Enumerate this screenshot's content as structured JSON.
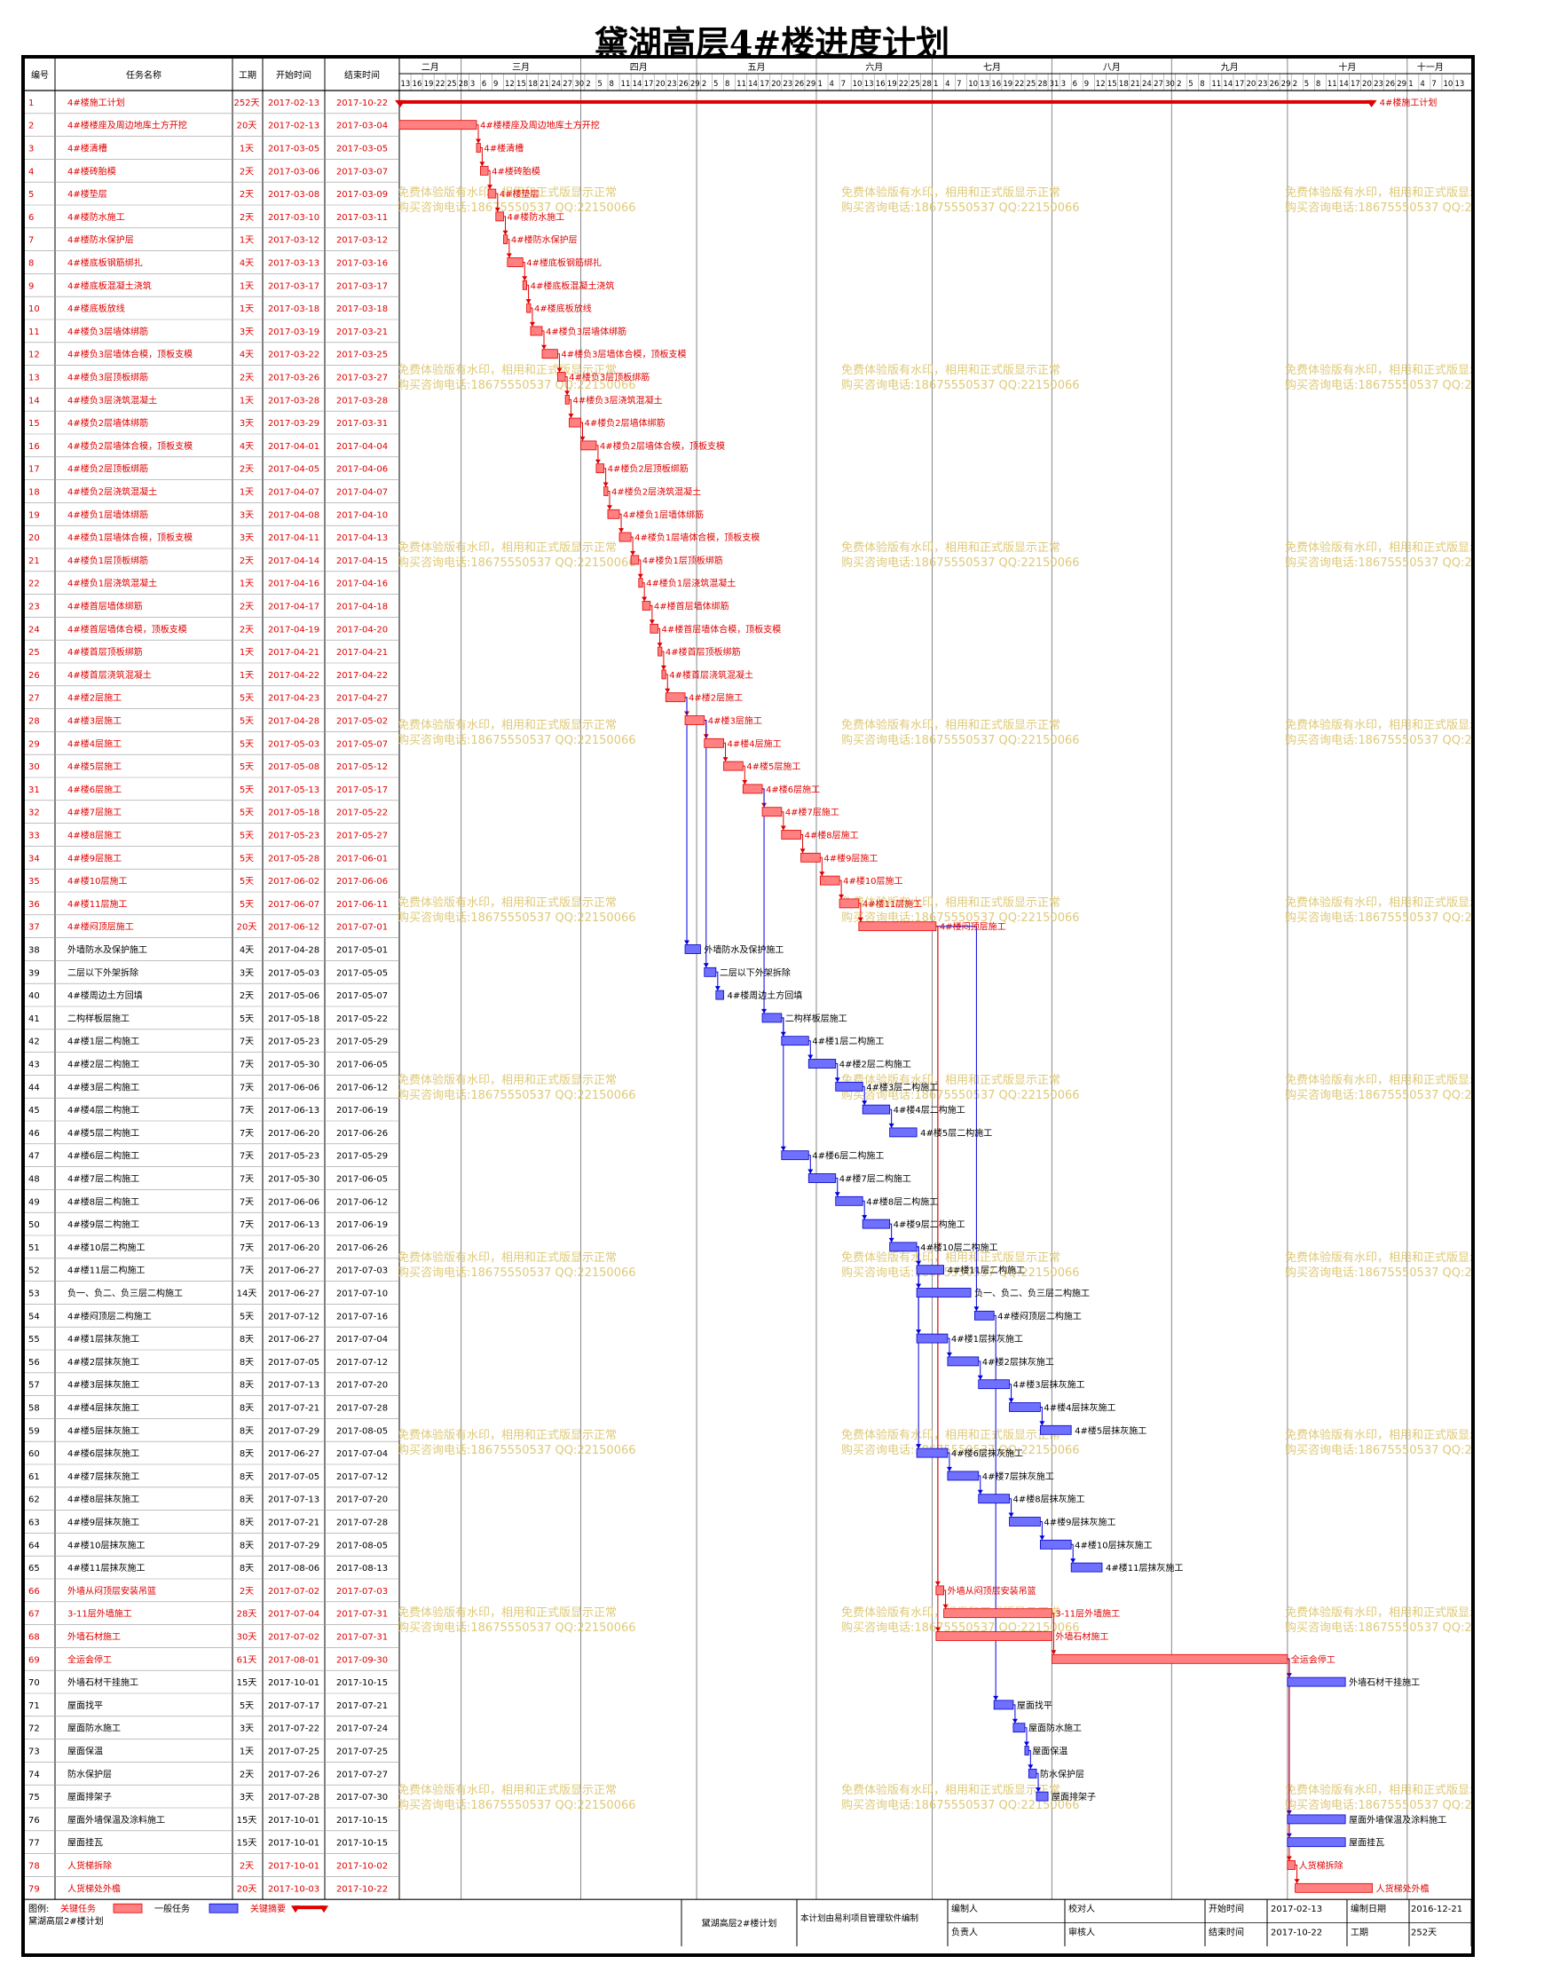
{
  "title": "黛湖高层4#楼进度计划",
  "headers": {
    "id": "编号",
    "name": "任务名称",
    "dur": "工期",
    "start": "开始时间",
    "end": "结束时间"
  },
  "months": [
    "二月",
    "三月",
    "四月",
    "五月",
    "六月",
    "七月",
    "八月",
    "九月",
    "十月",
    "十一月"
  ],
  "day_ticks": [
    {
      "m": "2017-02",
      "d": [
        13,
        16,
        19,
        22,
        25,
        28
      ]
    },
    {
      "m": "2017-03",
      "d": [
        3,
        6,
        9,
        12,
        15,
        18,
        21,
        24,
        27,
        30
      ]
    },
    {
      "m": "2017-04",
      "d": [
        2,
        5,
        8,
        11,
        14,
        17,
        20,
        23,
        26,
        29
      ]
    },
    {
      "m": "2017-05",
      "d": [
        2,
        5,
        8,
        11,
        14,
        17,
        20,
        23,
        26,
        29
      ]
    },
    {
      "m": "2017-06",
      "d": [
        1,
        4,
        7,
        10,
        13,
        16,
        19,
        22,
        25,
        28
      ]
    },
    {
      "m": "2017-07",
      "d": [
        1,
        4,
        7,
        10,
        13,
        16,
        19,
        22,
        25,
        28,
        31
      ]
    },
    {
      "m": "2017-08",
      "d": [
        3,
        6,
        9,
        12,
        15,
        18,
        21,
        24,
        27,
        30
      ]
    },
    {
      "m": "2017-09",
      "d": [
        2,
        5,
        8,
        11,
        14,
        17,
        20,
        23,
        26,
        29
      ]
    },
    {
      "m": "2017-10",
      "d": [
        2,
        5,
        8,
        11,
        14,
        17,
        20,
        23,
        26,
        29
      ]
    },
    {
      "m": "2017-11",
      "d": [
        1,
        4,
        7,
        10,
        13
      ]
    }
  ],
  "colors": {
    "critical": "#e00000",
    "critical_fill": "#ff8080",
    "normal_fill": "#7070ff",
    "normal_edge": "#0000c0",
    "link_blue": "#0000e0",
    "link_red": "#e00000",
    "summary": "#e00000"
  },
  "watermark": [
    "免费体验版有水印，相用和正式版显示正常",
    "购买咨询电话:18675550537 QQ:22150066"
  ],
  "chart_data": {
    "type": "gantt",
    "time_axis": {
      "start": "2017-02-13",
      "end": "2017-11-13"
    },
    "tasks": [
      {
        "id": "1",
        "name": "4#楼施工计划",
        "dur": "252天",
        "start": "2017-02-13",
        "end": "2017-10-22",
        "crit": true,
        "summary": true
      },
      {
        "id": "2",
        "name": "4#楼楼座及周边地库土方开挖",
        "dur": "20天",
        "start": "2017-02-13",
        "end": "2017-03-04",
        "crit": true
      },
      {
        "id": "3",
        "name": "4#楼清槽",
        "dur": "1天",
        "start": "2017-03-05",
        "end": "2017-03-05",
        "crit": true
      },
      {
        "id": "4",
        "name": "4#楼砖胎模",
        "dur": "2天",
        "start": "2017-03-06",
        "end": "2017-03-07",
        "crit": true
      },
      {
        "id": "5",
        "name": "4#楼垫层",
        "dur": "2天",
        "start": "2017-03-08",
        "end": "2017-03-09",
        "crit": true
      },
      {
        "id": "6",
        "name": "4#楼防水施工",
        "dur": "2天",
        "start": "2017-03-10",
        "end": "2017-03-11",
        "crit": true
      },
      {
        "id": "7",
        "name": "4#楼防水保护层",
        "dur": "1天",
        "start": "2017-03-12",
        "end": "2017-03-12",
        "crit": true
      },
      {
        "id": "8",
        "name": "4#楼底板钢筋绑扎",
        "dur": "4天",
        "start": "2017-03-13",
        "end": "2017-03-16",
        "crit": true
      },
      {
        "id": "9",
        "name": "4#楼底板混凝土浇筑",
        "dur": "1天",
        "start": "2017-03-17",
        "end": "2017-03-17",
        "crit": true
      },
      {
        "id": "10",
        "name": "4#楼底板放线",
        "dur": "1天",
        "start": "2017-03-18",
        "end": "2017-03-18",
        "crit": true
      },
      {
        "id": "11",
        "name": "4#楼负3层墙体绑筋",
        "dur": "3天",
        "start": "2017-03-19",
        "end": "2017-03-21",
        "crit": true
      },
      {
        "id": "12",
        "name": "4#楼负3层墙体合模，顶板支模",
        "dur": "4天",
        "start": "2017-03-22",
        "end": "2017-03-25",
        "crit": true
      },
      {
        "id": "13",
        "name": "4#楼负3层顶板绑筋",
        "dur": "2天",
        "start": "2017-03-26",
        "end": "2017-03-27",
        "crit": true
      },
      {
        "id": "14",
        "name": "4#楼负3层浇筑混凝土",
        "dur": "1天",
        "start": "2017-03-28",
        "end": "2017-03-28",
        "crit": true
      },
      {
        "id": "15",
        "name": "4#楼负2层墙体绑筋",
        "dur": "3天",
        "start": "2017-03-29",
        "end": "2017-03-31",
        "crit": true
      },
      {
        "id": "16",
        "name": "4#楼负2层墙体合模，顶板支模",
        "dur": "4天",
        "start": "2017-04-01",
        "end": "2017-04-04",
        "crit": true
      },
      {
        "id": "17",
        "name": "4#楼负2层顶板绑筋",
        "dur": "2天",
        "start": "2017-04-05",
        "end": "2017-04-06",
        "crit": true
      },
      {
        "id": "18",
        "name": "4#楼负2层浇筑混凝土",
        "dur": "1天",
        "start": "2017-04-07",
        "end": "2017-04-07",
        "crit": true
      },
      {
        "id": "19",
        "name": "4#楼负1层墙体绑筋",
        "dur": "3天",
        "start": "2017-04-08",
        "end": "2017-04-10",
        "crit": true
      },
      {
        "id": "20",
        "name": "4#楼负1层墙体合模，顶板支模",
        "dur": "3天",
        "start": "2017-04-11",
        "end": "2017-04-13",
        "crit": true
      },
      {
        "id": "21",
        "name": "4#楼负1层顶板绑筋",
        "dur": "2天",
        "start": "2017-04-14",
        "end": "2017-04-15",
        "crit": true
      },
      {
        "id": "22",
        "name": "4#楼负1层浇筑混凝土",
        "dur": "1天",
        "start": "2017-04-16",
        "end": "2017-04-16",
        "crit": true
      },
      {
        "id": "23",
        "name": "4#楼首层墙体绑筋",
        "dur": "2天",
        "start": "2017-04-17",
        "end": "2017-04-18",
        "crit": true
      },
      {
        "id": "24",
        "name": "4#楼首层墙体合模，顶板支模",
        "dur": "2天",
        "start": "2017-04-19",
        "end": "2017-04-20",
        "crit": true
      },
      {
        "id": "25",
        "name": "4#楼首层顶板绑筋",
        "dur": "1天",
        "start": "2017-04-21",
        "end": "2017-04-21",
        "crit": true
      },
      {
        "id": "26",
        "name": "4#楼首层浇筑混凝土",
        "dur": "1天",
        "start": "2017-04-22",
        "end": "2017-04-22",
        "crit": true
      },
      {
        "id": "27",
        "name": "4#楼2层施工",
        "dur": "5天",
        "start": "2017-04-23",
        "end": "2017-04-27",
        "crit": true
      },
      {
        "id": "28",
        "name": "4#楼3层施工",
        "dur": "5天",
        "start": "2017-04-28",
        "end": "2017-05-02",
        "crit": true
      },
      {
        "id": "29",
        "name": "4#楼4层施工",
        "dur": "5天",
        "start": "2017-05-03",
        "end": "2017-05-07",
        "crit": true
      },
      {
        "id": "30",
        "name": "4#楼5层施工",
        "dur": "5天",
        "start": "2017-05-08",
        "end": "2017-05-12",
        "crit": true
      },
      {
        "id": "31",
        "name": "4#楼6层施工",
        "dur": "5天",
        "start": "2017-05-13",
        "end": "2017-05-17",
        "crit": true
      },
      {
        "id": "32",
        "name": "4#楼7层施工",
        "dur": "5天",
        "start": "2017-05-18",
        "end": "2017-05-22",
        "crit": true
      },
      {
        "id": "33",
        "name": "4#楼8层施工",
        "dur": "5天",
        "start": "2017-05-23",
        "end": "2017-05-27",
        "crit": true
      },
      {
        "id": "34",
        "name": "4#楼9层施工",
        "dur": "5天",
        "start": "2017-05-28",
        "end": "2017-06-01",
        "crit": true
      },
      {
        "id": "35",
        "name": "4#楼10层施工",
        "dur": "5天",
        "start": "2017-06-02",
        "end": "2017-06-06",
        "crit": true
      },
      {
        "id": "36",
        "name": "4#楼11层施工",
        "dur": "5天",
        "start": "2017-06-07",
        "end": "2017-06-11",
        "crit": true
      },
      {
        "id": "37",
        "name": "4#楼闷顶层施工",
        "dur": "20天",
        "start": "2017-06-12",
        "end": "2017-07-01",
        "crit": true
      },
      {
        "id": "38",
        "name": "外墙防水及保护施工",
        "dur": "4天",
        "start": "2017-04-28",
        "end": "2017-05-01",
        "crit": false
      },
      {
        "id": "39",
        "name": "二层以下外架拆除",
        "dur": "3天",
        "start": "2017-05-03",
        "end": "2017-05-05",
        "crit": false
      },
      {
        "id": "40",
        "name": "4#楼周边土方回填",
        "dur": "2天",
        "start": "2017-05-06",
        "end": "2017-05-07",
        "crit": false
      },
      {
        "id": "41",
        "name": "二构样板层施工",
        "dur": "5天",
        "start": "2017-05-18",
        "end": "2017-05-22",
        "crit": false
      },
      {
        "id": "42",
        "name": "4#楼1层二构施工",
        "dur": "7天",
        "start": "2017-05-23",
        "end": "2017-05-29",
        "crit": false
      },
      {
        "id": "43",
        "name": "4#楼2层二构施工",
        "dur": "7天",
        "start": "2017-05-30",
        "end": "2017-06-05",
        "crit": false
      },
      {
        "id": "44",
        "name": "4#楼3层二构施工",
        "dur": "7天",
        "start": "2017-06-06",
        "end": "2017-06-12",
        "crit": false
      },
      {
        "id": "45",
        "name": "4#楼4层二构施工",
        "dur": "7天",
        "start": "2017-06-13",
        "end": "2017-06-19",
        "crit": false
      },
      {
        "id": "46",
        "name": "4#楼5层二构施工",
        "dur": "7天",
        "start": "2017-06-20",
        "end": "2017-06-26",
        "crit": false
      },
      {
        "id": "47",
        "name": "4#楼6层二构施工",
        "dur": "7天",
        "start": "2017-05-23",
        "end": "2017-05-29",
        "crit": false
      },
      {
        "id": "48",
        "name": "4#楼7层二构施工",
        "dur": "7天",
        "start": "2017-05-30",
        "end": "2017-06-05",
        "crit": false
      },
      {
        "id": "49",
        "name": "4#楼8层二构施工",
        "dur": "7天",
        "start": "2017-06-06",
        "end": "2017-06-12",
        "crit": false
      },
      {
        "id": "50",
        "name": "4#楼9层二构施工",
        "dur": "7天",
        "start": "2017-06-13",
        "end": "2017-06-19",
        "crit": false
      },
      {
        "id": "51",
        "name": "4#楼10层二构施工",
        "dur": "7天",
        "start": "2017-06-20",
        "end": "2017-06-26",
        "crit": false
      },
      {
        "id": "52",
        "name": "4#楼11层二构施工",
        "dur": "7天",
        "start": "2017-06-27",
        "end": "2017-07-03",
        "crit": false
      },
      {
        "id": "53",
        "name": "负一、负二、负三层二构施工",
        "dur": "14天",
        "start": "2017-06-27",
        "end": "2017-07-10",
        "crit": false
      },
      {
        "id": "54",
        "name": "4#楼闷顶层二构施工",
        "dur": "5天",
        "start": "2017-07-12",
        "end": "2017-07-16",
        "crit": false
      },
      {
        "id": "55",
        "name": "4#楼1层抹灰施工",
        "dur": "8天",
        "start": "2017-06-27",
        "end": "2017-07-04",
        "crit": false
      },
      {
        "id": "56",
        "name": "4#楼2层抹灰施工",
        "dur": "8天",
        "start": "2017-07-05",
        "end": "2017-07-12",
        "crit": false
      },
      {
        "id": "57",
        "name": "4#楼3层抹灰施工",
        "dur": "8天",
        "start": "2017-07-13",
        "end": "2017-07-20",
        "crit": false
      },
      {
        "id": "58",
        "name": "4#楼4层抹灰施工",
        "dur": "8天",
        "start": "2017-07-21",
        "end": "2017-07-28",
        "crit": false
      },
      {
        "id": "59",
        "name": "4#楼5层抹灰施工",
        "dur": "8天",
        "start": "2017-07-29",
        "end": "2017-08-05",
        "crit": false
      },
      {
        "id": "60",
        "name": "4#楼6层抹灰施工",
        "dur": "8天",
        "start": "2017-06-27",
        "end": "2017-07-04",
        "crit": false
      },
      {
        "id": "61",
        "name": "4#楼7层抹灰施工",
        "dur": "8天",
        "start": "2017-07-05",
        "end": "2017-07-12",
        "crit": false
      },
      {
        "id": "62",
        "name": "4#楼8层抹灰施工",
        "dur": "8天",
        "start": "2017-07-13",
        "end": "2017-07-20",
        "crit": false
      },
      {
        "id": "63",
        "name": "4#楼9层抹灰施工",
        "dur": "8天",
        "start": "2017-07-21",
        "end": "2017-07-28",
        "crit": false
      },
      {
        "id": "64",
        "name": "4#楼10层抹灰施工",
        "dur": "8天",
        "start": "2017-07-29",
        "end": "2017-08-05",
        "crit": false
      },
      {
        "id": "65",
        "name": "4#楼11层抹灰施工",
        "dur": "8天",
        "start": "2017-08-06",
        "end": "2017-08-13",
        "crit": false
      },
      {
        "id": "66",
        "name": "外墙从闷顶层安装吊篮",
        "dur": "2天",
        "start": "2017-07-02",
        "end": "2017-07-03",
        "crit": true
      },
      {
        "id": "67",
        "name": "3-11层外墙施工",
        "dur": "28天",
        "start": "2017-07-04",
        "end": "2017-07-31",
        "crit": true
      },
      {
        "id": "68",
        "name": "外墙石材施工",
        "dur": "30天",
        "start": "2017-07-02",
        "end": "2017-07-31",
        "crit": true
      },
      {
        "id": "69",
        "name": "全运会停工",
        "dur": "61天",
        "start": "2017-08-01",
        "end": "2017-09-30",
        "crit": true
      },
      {
        "id": "70",
        "name": "外墙石材干挂施工",
        "dur": "15天",
        "start": "2017-10-01",
        "end": "2017-10-15",
        "crit": false
      },
      {
        "id": "71",
        "name": "屋面找平",
        "dur": "5天",
        "start": "2017-07-17",
        "end": "2017-07-21",
        "crit": false
      },
      {
        "id": "72",
        "name": "屋面防水施工",
        "dur": "3天",
        "start": "2017-07-22",
        "end": "2017-07-24",
        "crit": false
      },
      {
        "id": "73",
        "name": "屋面保温",
        "dur": "1天",
        "start": "2017-07-25",
        "end": "2017-07-25",
        "crit": false
      },
      {
        "id": "74",
        "name": "防水保护层",
        "dur": "2天",
        "start": "2017-07-26",
        "end": "2017-07-27",
        "crit": false
      },
      {
        "id": "75",
        "name": "屋面排架子",
        "dur": "3天",
        "start": "2017-07-28",
        "end": "2017-07-30",
        "crit": false
      },
      {
        "id": "76",
        "name": "屋面外墙保温及涂料施工",
        "dur": "15天",
        "start": "2017-10-01",
        "end": "2017-10-15",
        "crit": false
      },
      {
        "id": "77",
        "name": "屋面挂瓦",
        "dur": "15天",
        "start": "2017-10-01",
        "end": "2017-10-15",
        "crit": false
      },
      {
        "id": "78",
        "name": "人货梯拆除",
        "dur": "2天",
        "start": "2017-10-01",
        "end": "2017-10-02",
        "crit": true
      },
      {
        "id": "79",
        "name": "人货梯处外檐",
        "dur": "20天",
        "start": "2017-10-03",
        "end": "2017-10-22",
        "crit": true
      }
    ],
    "links": [
      [
        2,
        3
      ],
      [
        3,
        4
      ],
      [
        4,
        5
      ],
      [
        5,
        6
      ],
      [
        6,
        7
      ],
      [
        7,
        8
      ],
      [
        8,
        9
      ],
      [
        9,
        10
      ],
      [
        10,
        11
      ],
      [
        11,
        12
      ],
      [
        12,
        13
      ],
      [
        13,
        14
      ],
      [
        14,
        15
      ],
      [
        15,
        16
      ],
      [
        16,
        17
      ],
      [
        17,
        18
      ],
      [
        18,
        19
      ],
      [
        19,
        20
      ],
      [
        20,
        21
      ],
      [
        21,
        22
      ],
      [
        22,
        23
      ],
      [
        23,
        24
      ],
      [
        24,
        25
      ],
      [
        25,
        26
      ],
      [
        26,
        27
      ],
      [
        27,
        28
      ],
      [
        28,
        29
      ],
      [
        29,
        30
      ],
      [
        30,
        31
      ],
      [
        31,
        32
      ],
      [
        32,
        33
      ],
      [
        33,
        34
      ],
      [
        34,
        35
      ],
      [
        35,
        36
      ],
      [
        36,
        37
      ],
      [
        27,
        38
      ],
      [
        28,
        39
      ],
      [
        39,
        40
      ],
      [
        31,
        41
      ],
      [
        41,
        42
      ],
      [
        42,
        43
      ],
      [
        43,
        44
      ],
      [
        44,
        45
      ],
      [
        45,
        46
      ],
      [
        41,
        47
      ],
      [
        47,
        48
      ],
      [
        48,
        49
      ],
      [
        49,
        50
      ],
      [
        50,
        51
      ],
      [
        51,
        52
      ],
      [
        51,
        53
      ],
      [
        37,
        54
      ],
      [
        51,
        55
      ],
      [
        55,
        56
      ],
      [
        56,
        57
      ],
      [
        57,
        58
      ],
      [
        58,
        59
      ],
      [
        51,
        60
      ],
      [
        60,
        61
      ],
      [
        61,
        62
      ],
      [
        62,
        63
      ],
      [
        63,
        64
      ],
      [
        64,
        65
      ],
      [
        37,
        66
      ],
      [
        66,
        67
      ],
      [
        37,
        68
      ],
      [
        67,
        69
      ],
      [
        69,
        70
      ],
      [
        54,
        71
      ],
      [
        71,
        72
      ],
      [
        72,
        73
      ],
      [
        73,
        74
      ],
      [
        74,
        75
      ],
      [
        69,
        76
      ],
      [
        69,
        77
      ],
      [
        69,
        78
      ],
      [
        78,
        79
      ]
    ]
  },
  "footer": {
    "legend_label": "图例:",
    "legend_critical": "关键任务",
    "legend_normal": "一般任务",
    "legend_summary": "关键摘要",
    "project_name": "黛湖高层2#楼计划",
    "project_name2": "黛湖高层2#楼计划",
    "software_note": "本计划由易利项目管理软件编制",
    "compiler_label": "编制人",
    "checker_label": "校对人",
    "manager_label": "负责人",
    "reviewer_label": "审核人",
    "start_label": "开始时间",
    "start_value": "2017-02-13",
    "compile_date_label": "编制日期",
    "compile_date_value": "2016-12-21",
    "end_label": "结束时间",
    "end_value": "2017-10-22",
    "duration_label": "工期",
    "duration_value": "252天"
  }
}
